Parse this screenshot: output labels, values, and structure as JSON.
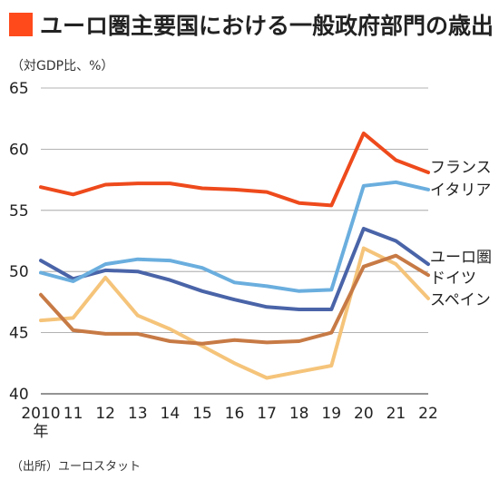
{
  "title": "ユーロ圏主要国における一般政府部門の歳出",
  "unit_label": "（対GDP比、%）",
  "source_note": "（出所）ユーロスタット",
  "chart_data": {
    "type": "line",
    "title": "ユーロ圏主要国における一般政府部門の歳出",
    "ylabel": "（対GDP比、%）",
    "xlabel": "",
    "x": [
      "2010",
      "11",
      "12",
      "13",
      "14",
      "15",
      "16",
      "17",
      "18",
      "19",
      "20",
      "21",
      "22"
    ],
    "x_unit": "年",
    "ylim": [
      40,
      65
    ],
    "yticks": [
      40,
      45,
      50,
      55,
      60,
      65
    ],
    "grid": "horizontal",
    "legend": "right-end-labels",
    "series": [
      {
        "name": "フランス",
        "color": "#ee4a1c",
        "values": [
          56.9,
          56.3,
          57.1,
          57.2,
          57.2,
          56.8,
          56.7,
          56.5,
          55.6,
          55.4,
          61.3,
          59.1,
          58.1
        ]
      },
      {
        "name": "イタリア",
        "color": "#6aaede",
        "values": [
          49.9,
          49.2,
          50.6,
          51.0,
          50.9,
          50.3,
          49.1,
          48.8,
          48.4,
          48.5,
          57.0,
          57.3,
          56.7
        ]
      },
      {
        "name": "ユーロ圏",
        "color": "#4a64a8",
        "values": [
          50.9,
          49.4,
          50.1,
          50.0,
          49.3,
          48.4,
          47.7,
          47.1,
          46.9,
          46.9,
          53.5,
          52.5,
          50.6
        ]
      },
      {
        "name": "ドイツ",
        "color": "#c77a45",
        "values": [
          48.1,
          45.2,
          44.9,
          44.9,
          44.3,
          44.1,
          44.4,
          44.2,
          44.3,
          45.0,
          50.4,
          51.3,
          49.7
        ]
      },
      {
        "name": "スペイン",
        "color": "#f5c47a",
        "values": [
          46.0,
          46.2,
          49.5,
          46.4,
          45.3,
          43.9,
          42.5,
          41.3,
          41.8,
          42.3,
          51.9,
          50.6,
          47.8
        ]
      }
    ]
  }
}
